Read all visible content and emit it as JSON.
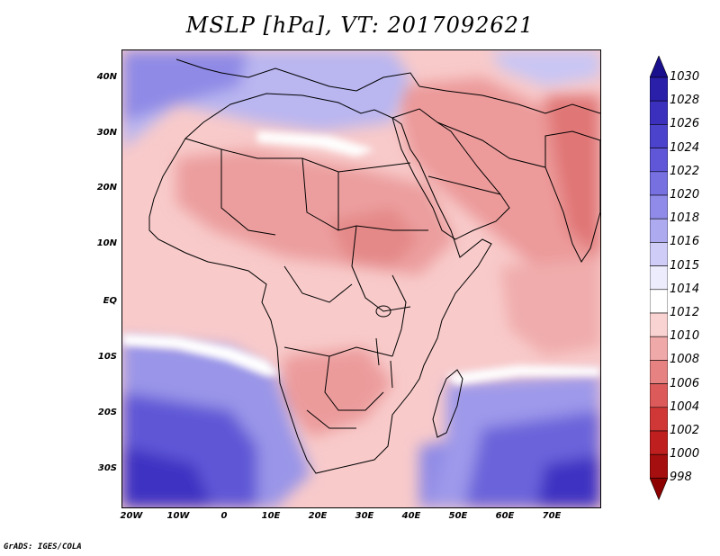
{
  "title": "MSLP [hPa], VT: 2017092621",
  "credit": "GrADS: IGES/COLA",
  "lat_labels": [
    "40N",
    "30N",
    "20N",
    "10N",
    "EQ",
    "10S",
    "20S",
    "30S"
  ],
  "lon_labels": [
    "20W",
    "10W",
    "0",
    "10E",
    "20E",
    "30E",
    "40E",
    "50E",
    "60E",
    "70E"
  ],
  "colorbar": {
    "levels": [
      "1030",
      "1028",
      "1026",
      "1024",
      "1022",
      "1020",
      "1018",
      "1016",
      "1015",
      "1014",
      "1012",
      "1010",
      "1008",
      "1006",
      "1004",
      "1002",
      "1000",
      "998"
    ],
    "colors": [
      "#1a0f8c",
      "#2a1fa8",
      "#3b30bd",
      "#4c43cc",
      "#5f57d8",
      "#7670e0",
      "#908be8",
      "#aeaaf0",
      "#cfcdf7",
      "#ececfc",
      "#ffffff",
      "#f9d2d2",
      "#f0a9a9",
      "#e68282",
      "#dc5a5a",
      "#d03838",
      "#c01f1f",
      "#a50f0f",
      "#8c0000"
    ]
  },
  "map": {
    "variable": "Mean sea level pressure",
    "units": "hPa",
    "valid_time": "2017092621",
    "lon_range": [
      -22,
      80
    ],
    "lat_range": [
      -37,
      45
    ]
  }
}
